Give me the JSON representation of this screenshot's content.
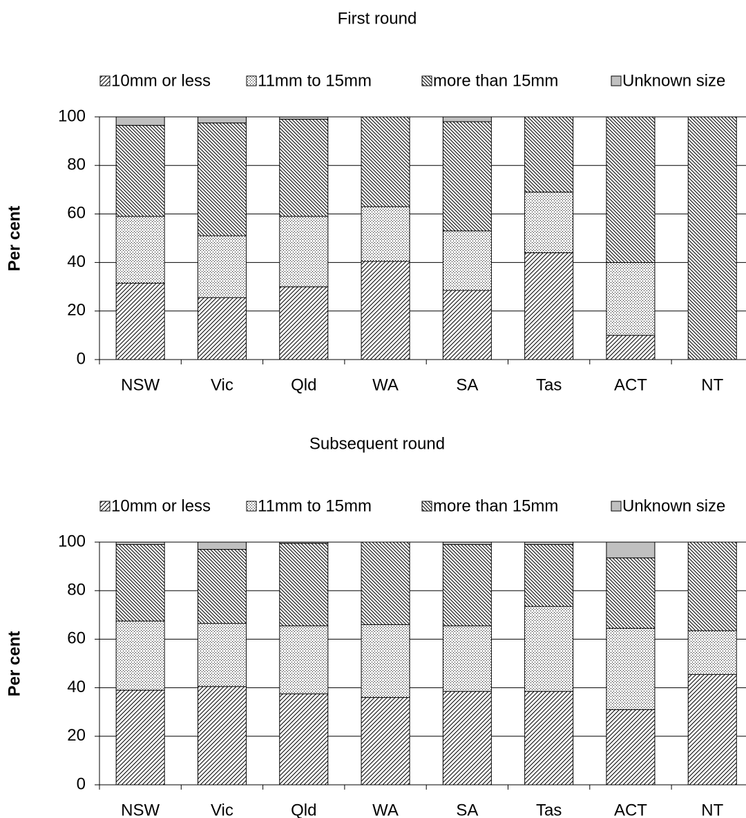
{
  "chart_data": [
    {
      "type": "stacked-bar",
      "title": "First round",
      "ylabel": "Per cent",
      "categories": [
        "NSW",
        "Vic",
        "Qld",
        "WA",
        "SA",
        "Tas",
        "ACT",
        "NT"
      ],
      "series": [
        {
          "name": "10mm or less",
          "color": "#000000",
          "pattern": "forward-hatch",
          "values": [
            31.5,
            25.5,
            30,
            40.5,
            28.5,
            44,
            10,
            0
          ]
        },
        {
          "name": "11mm to 15mm",
          "color": "#000000",
          "pattern": "dots",
          "values": [
            27.5,
            25.5,
            29,
            22.5,
            24.5,
            25,
            30,
            0
          ]
        },
        {
          "name": "more than 15mm",
          "color": "#000000",
          "pattern": "back-hatch",
          "values": [
            37.5,
            46.5,
            40,
            37,
            45,
            31,
            60,
            100
          ]
        },
        {
          "name": "Unknown size",
          "color": "#c0c0c0",
          "pattern": "solid",
          "values": [
            3.5,
            2.5,
            1,
            0,
            2,
            0,
            0,
            0
          ]
        }
      ],
      "ylim": [
        0,
        100
      ],
      "yticks": [
        0,
        20,
        40,
        60,
        80,
        100
      ],
      "grid": true,
      "legend": "top"
    },
    {
      "type": "stacked-bar",
      "title": "Subsequent round",
      "ylabel": "Per cent",
      "categories": [
        "NSW",
        "Vic",
        "Qld",
        "WA",
        "SA",
        "Tas",
        "ACT",
        "NT"
      ],
      "series": [
        {
          "name": "10mm or less",
          "color": "#000000",
          "pattern": "forward-hatch",
          "values": [
            39,
            40.5,
            37.5,
            36,
            38.5,
            38.5,
            31,
            45.5
          ]
        },
        {
          "name": "11mm to 15mm",
          "color": "#000000",
          "pattern": "dots",
          "values": [
            28.5,
            26,
            28,
            30,
            27,
            35,
            33.5,
            18
          ]
        },
        {
          "name": "more than 15mm",
          "color": "#000000",
          "pattern": "back-hatch",
          "values": [
            31.5,
            30.5,
            34,
            34,
            33.5,
            25.5,
            29,
            36.5
          ]
        },
        {
          "name": "Unknown size",
          "color": "#c0c0c0",
          "pattern": "solid",
          "values": [
            1,
            3,
            0.5,
            0,
            1,
            1,
            6.5,
            0
          ]
        }
      ],
      "ylim": [
        0,
        100
      ],
      "yticks": [
        0,
        20,
        40,
        60,
        80,
        100
      ],
      "grid": true,
      "legend": "top"
    }
  ]
}
